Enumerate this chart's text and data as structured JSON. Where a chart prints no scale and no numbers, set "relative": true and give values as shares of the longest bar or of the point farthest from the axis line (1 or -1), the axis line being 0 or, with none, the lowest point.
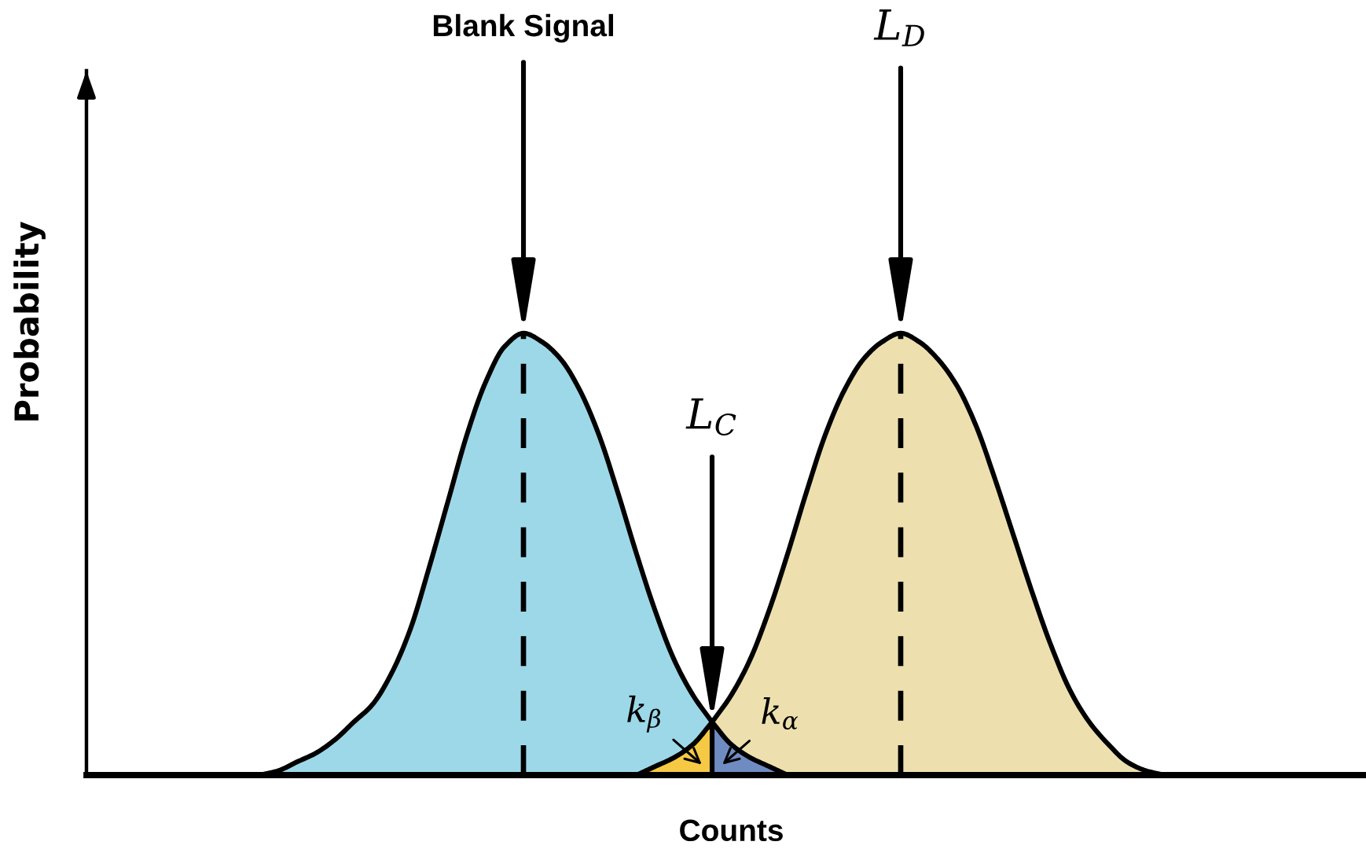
{
  "chart_data": {
    "type": "area",
    "relative": true,
    "xlabel": "Counts",
    "ylabel": "Probability",
    "annotations": [
      "Blank Signal",
      "L$_{D}$",
      "L$_{C}$"
    ],
    "categories": [
      null,
      null,
      null,
      null,
      null,
      null,
      null,
      null,
      null,
      null,
      null,
      null,
      null,
      null,
      null,
      null,
      null,
      null,
      null,
      null,
      null,
      null,
      null,
      null,
      null,
      null,
      null,
      null,
      null,
      null,
      null,
      null,
      null,
      null,
      null,
      null,
      null,
      null,
      null,
      null,
      null,
      null,
      null,
      null,
      null,
      null,
      null,
      null,
      null,
      null,
      null,
      null,
      null,
      null,
      null,
      null,
      null,
      null,
      null,
      null,
      null,
      null,
      null,
      null,
      null,
      null,
      null,
      null
    ],
    "series": [
      {
        "color": "#9dd8e8",
        "values": [
          null,
          null,
          null,
          null,
          null,
          null,
          null,
          null,
          null,
          0,
          0.01,
          0.03,
          0.05,
          0.08,
          0.12,
          0.16,
          0.23,
          0.33,
          0.47,
          0.62,
          0.77,
          0.89,
          0.97,
          1.0,
          0.98,
          0.94,
          0.87,
          0.77,
          0.64,
          0.5,
          0.37,
          0.26,
          0.18,
          0.12,
          null,
          null,
          null,
          null,
          null,
          null,
          null,
          null,
          null,
          null,
          null,
          null,
          null,
          null,
          null,
          null,
          null,
          null,
          null,
          null,
          null,
          null,
          null,
          null,
          null,
          null,
          null,
          null,
          null,
          null,
          null,
          null,
          null,
          null
        ]
      },
      {
        "color": "#ede0ae",
        "values": [
          null,
          null,
          null,
          null,
          null,
          null,
          null,
          null,
          null,
          null,
          null,
          null,
          null,
          null,
          null,
          null,
          null,
          null,
          null,
          null,
          null,
          null,
          null,
          null,
          null,
          null,
          null,
          null,
          null,
          null,
          null,
          null,
          null,
          0.12,
          0.18,
          0.26,
          0.37,
          0.5,
          0.64,
          0.77,
          0.87,
          0.94,
          0.98,
          1.0,
          0.98,
          0.94,
          0.88,
          0.79,
          0.67,
          0.54,
          0.41,
          0.29,
          0.19,
          0.12,
          0.07,
          0.03,
          0.01,
          0,
          null,
          null,
          null,
          null,
          null,
          null,
          null,
          null,
          null,
          null
        ]
      },
      {
        "name": "k$_{α}$",
        "color": "#6f8cc2",
        "values": [
          null,
          null,
          null,
          null,
          null,
          null,
          null,
          null,
          null,
          null,
          null,
          null,
          null,
          null,
          null,
          null,
          null,
          null,
          null,
          null,
          null,
          null,
          null,
          null,
          null,
          null,
          null,
          null,
          null,
          null,
          null,
          null,
          null,
          0.12,
          0.07,
          0.04,
          0.02,
          0,
          null,
          null,
          null,
          null,
          null,
          null,
          null,
          null,
          null,
          null,
          null,
          null,
          null,
          null,
          null,
          null,
          null,
          null,
          null,
          null,
          null,
          null,
          null,
          null,
          null,
          null,
          null,
          null,
          null,
          null
        ]
      },
      {
        "name": "k$_{β}$",
        "color": "#f6c945",
        "values": [
          null,
          null,
          null,
          null,
          null,
          null,
          null,
          null,
          null,
          null,
          null,
          null,
          null,
          null,
          null,
          null,
          null,
          null,
          null,
          null,
          null,
          null,
          null,
          null,
          null,
          null,
          null,
          null,
          null,
          0,
          0.02,
          0.04,
          0.07,
          0.12,
          null,
          null,
          null,
          null,
          null,
          null,
          null,
          null,
          null,
          null,
          null,
          null,
          null,
          null,
          null,
          null,
          null,
          null,
          null,
          null,
          null,
          null,
          null,
          null,
          null,
          null,
          null,
          null,
          null,
          null,
          null,
          null,
          null,
          null
        ]
      }
    ]
  }
}
